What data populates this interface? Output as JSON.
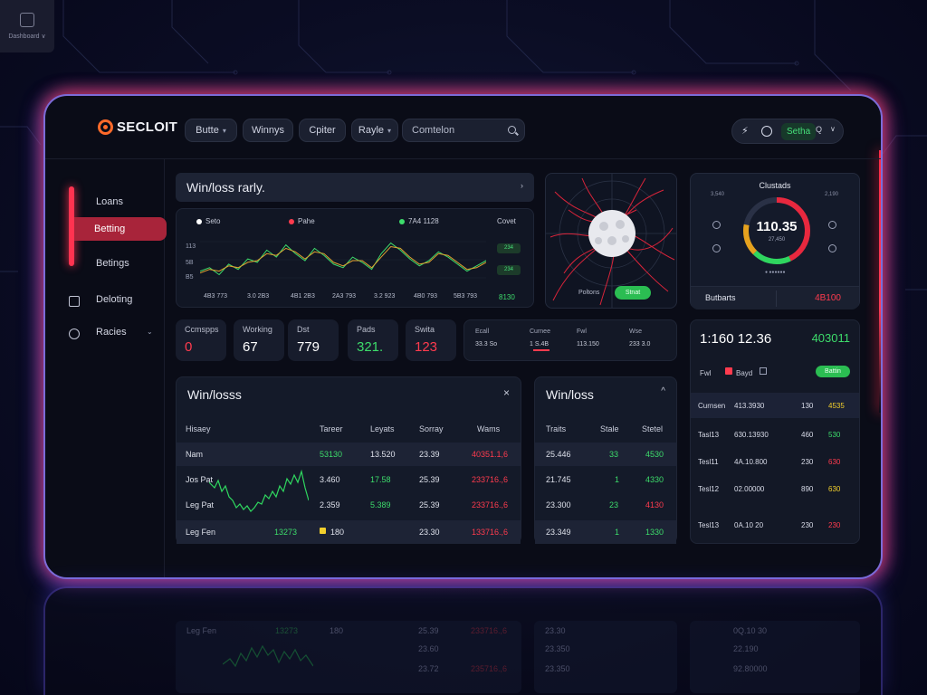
{
  "corner": {
    "label": "Dashboard ∨"
  },
  "header": {
    "brand": "SECLOIT",
    "nav": [
      {
        "label": "Butte",
        "chevron": "▾"
      },
      {
        "label": "Winnys",
        "chevron": ""
      },
      {
        "label": "Cpiter",
        "chevron": ""
      },
      {
        "label": "Rayle",
        "chevron": "▾"
      }
    ],
    "search": {
      "value": "Comtelon",
      "icon": "search-icon"
    },
    "tools": {
      "pill_label": "Setha",
      "search_mark": "Q",
      "chevron": "∨"
    }
  },
  "sidebar": {
    "items": [
      {
        "label": "Loans",
        "active": false
      },
      {
        "label": "Betting",
        "active": true
      },
      {
        "label": "Betings",
        "active": false
      },
      {
        "label": "Deloting",
        "active": false,
        "icon": "document-icon"
      },
      {
        "label": "Racies",
        "active": false,
        "icon": "clock-icon",
        "chevron": "⌄"
      }
    ]
  },
  "chart": {
    "title": "Win/loss rarly.",
    "title_chevron": "›",
    "legend": [
      {
        "label": "Seto",
        "color": "#ffffff"
      },
      {
        "label": "Pahe",
        "color": "#ff3b4e"
      },
      {
        "label": "7A4 1128",
        "color": "#3ddc6b"
      }
    ],
    "legend_right": "Covet",
    "y_ticks": [
      "113",
      "5B",
      "B5"
    ],
    "x_ticks": [
      "4B3 773",
      "3.0 2B3",
      "4B1 2B3",
      "2A3 793",
      "3.2 923",
      "4B0 793",
      "5B3 793"
    ],
    "tags": [
      "234",
      "234"
    ],
    "corner_value": "8130",
    "colors": {
      "series_green": "#3ddc6b",
      "series_orange": "#e0a030"
    }
  },
  "chart_data": {
    "type": "line",
    "title": "Win/loss rarly.",
    "x": [
      0,
      1,
      2,
      3,
      4,
      5,
      6,
      7,
      8,
      9,
      10,
      11,
      12,
      13,
      14,
      15,
      16,
      17,
      18,
      19,
      20,
      21,
      22,
      23,
      24,
      25,
      26,
      27,
      28,
      29,
      30
    ],
    "series": [
      {
        "name": "7A4 1128",
        "values": [
          40,
          42,
          38,
          44,
          41,
          47,
          45,
          52,
          48,
          55,
          50,
          46,
          53,
          49,
          44,
          42,
          48,
          45,
          41,
          50,
          56,
          52,
          47,
          43,
          46,
          51,
          48,
          44,
          40,
          43,
          46
        ]
      },
      {
        "name": "Pahe",
        "values": [
          39,
          41,
          40,
          43,
          42,
          45,
          46,
          50,
          49,
          53,
          51,
          47,
          51,
          50,
          45,
          43,
          46,
          46,
          42,
          48,
          54,
          53,
          48,
          44,
          45,
          50,
          49,
          45,
          41,
          42,
          45
        ]
      }
    ],
    "ylim": [
      30,
      62
    ]
  },
  "map": {
    "label": "Poltons",
    "button": "Stnat"
  },
  "gauge": {
    "title": "Clustads",
    "value": "110.35",
    "sub": "27,450",
    "progress": 0.78,
    "small_left": "3,540",
    "small_right": "2,190",
    "footer_label": "Butbarts",
    "footer_value": "4B100",
    "dots": "● ●●●●●●"
  },
  "stats": [
    {
      "label": "Ccmspps",
      "value": "0",
      "color": "#ff3b4e"
    },
    {
      "label": "Working",
      "value": "67",
      "color": "#ffffff"
    },
    {
      "label": "Dst",
      "value": "779",
      "color": "#ffffff"
    },
    {
      "label": "Pads",
      "value": "321.",
      "color": "#3ddc6b"
    },
    {
      "label": "Swita",
      "value": "123",
      "color": "#ff3b4e"
    }
  ],
  "stat_wide": {
    "headers": [
      "Ecall",
      "Curnee",
      "Fwl",
      "Wse"
    ],
    "values": [
      "33.3 So",
      "1 S.4B",
      "113.150",
      "233 3.0"
    ]
  },
  "pricing": {
    "big": "1:160 12.36",
    "right": "403011",
    "sub_left": "Fwl",
    "sub_mid": "Bayd",
    "pill": "Battin",
    "rows": [
      {
        "c1": "Curnsen",
        "c2": "413.3930",
        "c3": "130",
        "c4": "4535",
        "c4color": "#f2cf2c"
      },
      {
        "c1": "Tasl13",
        "c2": "630.13930",
        "c3": "460",
        "c4": "530",
        "c4color": "#3ddc6b"
      },
      {
        "c1": "Tesl11",
        "c2": "4A.10.800",
        "c3": "230",
        "c4": "630",
        "c4color": "#ff3b4e"
      },
      {
        "c1": "Tesl12",
        "c2": "02.00000",
        "c3": "890",
        "c4": "630",
        "c4color": "#f2cf2c"
      },
      {
        "c1": "Tesl13",
        "c2": "0A.10 20",
        "c3": "230",
        "c4": "230",
        "c4color": "#ff3b4e"
      }
    ]
  },
  "winloss": {
    "title": "Win/losss",
    "close": "×",
    "headers": [
      "Hisaey",
      "Tareer",
      "Leyats",
      "Sorray",
      "Wams"
    ],
    "rows": [
      {
        "c1": "Nam",
        "c2": "53130",
        "c3": "13.520",
        "c4": "23.39",
        "c5": "40351.1,6",
        "c2c": "#3ddc6b",
        "c3c": "#dde0ea",
        "c5c": "#ff3b4e"
      },
      {
        "c1": "Jos Pat",
        "c2": "3.460",
        "c3": "17.58",
        "c4": "25.39",
        "c5": "233716.,6",
        "c2c": "#dde0ea",
        "c3c": "#3ddc6b",
        "c5c": "#ff3b4e"
      },
      {
        "c1": "Leg Pat",
        "c2": "2.359",
        "c3": "5.389",
        "c4": "25.39",
        "c5": "233716.,6",
        "c2c": "#dde0ea",
        "c3c": "#3ddc6b",
        "c5c": "#ff3b4e"
      },
      {
        "c1": "Leg Fen",
        "c2": "13273",
        "c3": "180",
        "c4": "23.30",
        "c5": "133716.,6",
        "c2c": "#3ddc6b",
        "c3c": "#dde0ea",
        "c5c": "#ff3b4e"
      }
    ]
  },
  "winloss2": {
    "title": "Win/loss",
    "chevron": "^",
    "headers": [
      "Traits",
      "Stale",
      "Stetel"
    ],
    "rows": [
      {
        "c1": "25.446",
        "c2": "33",
        "c3": "4530"
      },
      {
        "c1": "21.745",
        "c2": "1",
        "c3": "4330"
      },
      {
        "c1": "23.300",
        "c2": "23",
        "c3": "4130"
      },
      {
        "c1": "23.349",
        "c2": "1",
        "c3": "1330"
      }
    ],
    "c3colors": [
      "#3ddc6b",
      "#3ddc6b",
      "#ff3b4e",
      "#3ddc6b"
    ]
  },
  "reflection": {
    "labels": [
      "Leg Fen",
      "13273",
      "180",
      "25.39",
      "233716.,6",
      "23.60",
      "23.72",
      "235716.,6",
      "23.30",
      "23.350",
      "23.350",
      "0Q.10 30",
      "22.190",
      "92.80000"
    ]
  }
}
